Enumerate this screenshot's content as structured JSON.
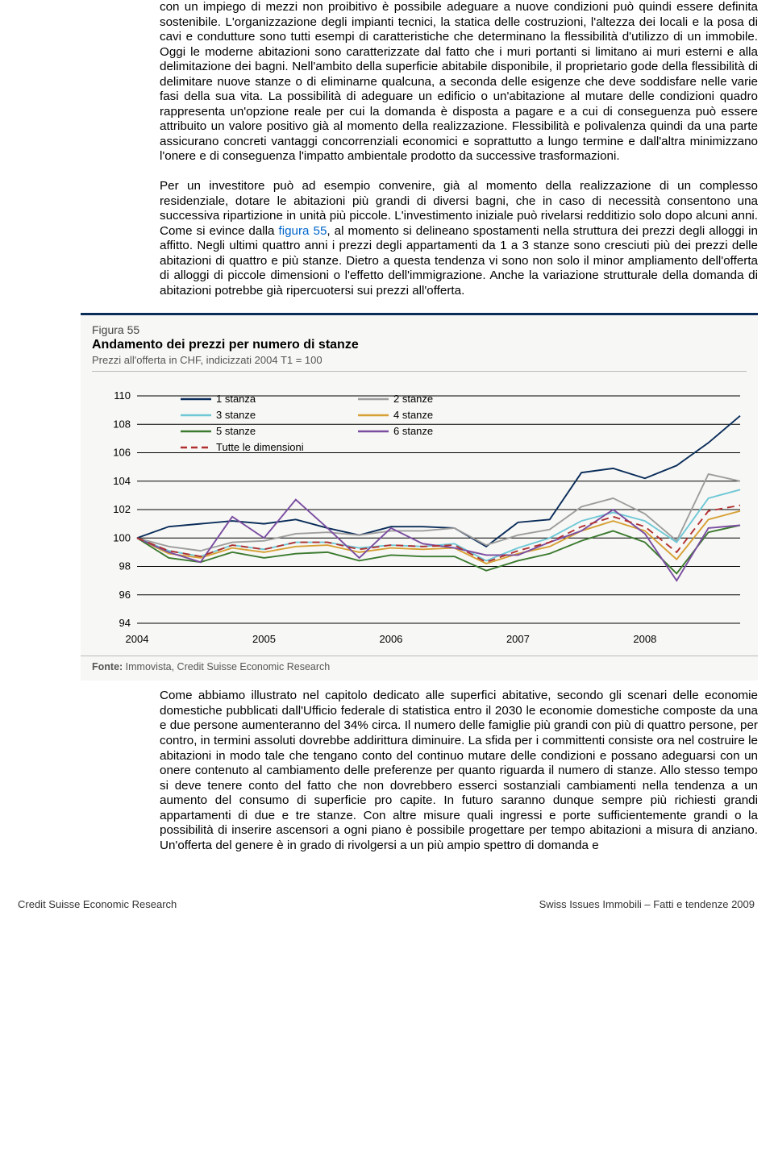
{
  "paragraphs": {
    "p1": "con un impiego di mezzi non proibitivo è possibile adeguare a nuove condizioni può quindi essere definita sostenibile. L'organizzazione degli impianti tecnici, la statica delle costruzioni, l'altezza dei locali e la posa di cavi e condutture sono tutti esempi di caratteristiche che determinano la flessibilità d'utilizzo di un immobile. Oggi le moderne abitazioni sono caratterizzate dal fatto che i muri portanti si limitano ai muri esterni e alla delimitazione dei bagni. Nell'ambito della superficie abitabile disponibile, il proprietario gode della flessibilità di delimitare nuove stanze o di eliminarne qualcuna, a seconda delle esigenze che deve soddisfare nelle varie fasi della sua vita. La possibilità di adeguare un edificio o un'abitazione al mutare delle condizioni quadro rappresenta un'opzione reale per cui la domanda è disposta a pagare e a cui di conseguenza può essere attribuito un valore positivo già al momento della realizzazione. Flessibilità e polivalenza quindi da una parte assicurano concreti vantaggi concorrenziali economici e soprattutto a lungo termine e dall'altra minimizzano l'onere e di conseguenza l'impatto ambientale prodotto da successive trasformazioni.",
    "p2_a": "Per un investitore può ad esempio convenire, già al momento della realizzazione di un complesso residenziale, dotare le abitazioni più grandi di diversi bagni, che in caso di necessità consentono una successiva ripartizione in unità più piccole. L'investimento iniziale può rivelarsi redditizio solo dopo alcuni anni. Come si evince dalla ",
    "p2_link": "figura 55",
    "p2_b": ", al momento si delineano spostamenti nella struttura dei prezzi degli alloggi in affitto. Negli ultimi quattro anni i prezzi degli appartamenti da 1 a 3 stanze sono cresciuti più dei prezzi delle abitazioni di quattro e più stanze. Dietro a questa tendenza vi sono non solo il minor ampliamento dell'offerta di alloggi di piccole dimensioni o l'effetto dell'immigrazione. Anche la variazione strutturale della domanda di abitazioni potrebbe già ripercuotersi sui prezzi all'offerta.",
    "p3": "Come abbiamo illustrato nel capitolo dedicato alle superfici abitative, secondo gli scenari delle economie domestiche pubblicati dall'Ufficio federale di statistica entro il 2030 le economie domestiche composte da una e due persone aumenteranno del 34% circa. Il numero delle famiglie più grandi con più di quattro persone, per contro, in termini assoluti dovrebbe addirittura diminuire. La sfida per i committenti consiste ora nel costruire le abitazioni in modo tale che tengano conto del continuo mutare delle condizioni e possano adeguarsi con un onere contenuto al cambiamento delle preferenze per quanto riguarda il numero di stanze. Allo stesso tempo si deve tenere conto del fatto che non dovrebbero esserci sostanziali cambiamenti nella tendenza a un aumento del consumo di superficie pro capite. In futuro saranno dunque sempre più richiesti grandi appartamenti di due e tre stanze. Con altre misure quali ingressi e porte sufficientemente grandi o la possibilità di inserire ascensori a ogni piano è possibile progettare per tempo abitazioni a misura di anziano. Un'offerta del genere è in grado di rivolgersi a un più ampio spettro di domanda e"
  },
  "figure": {
    "number": "Figura 55",
    "title": "Andamento dei prezzi per numero di stanze",
    "subtitle": "Prezzi all'offerta in CHF, indicizzati 2004 T1 = 100",
    "source_label": "Fonte:",
    "source_text": " Immovista, Credit Suisse Economic Research",
    "legend": {
      "s1": "1 stanza",
      "s2": "2 stanze",
      "s3": "3 stanze",
      "s4": "4 stanze",
      "s5": "5 stanze",
      "s6": "6 stanze",
      "all": "Tutte le dimensioni"
    },
    "y_ticks": [
      94,
      96,
      98,
      100,
      102,
      104,
      106,
      108,
      110
    ],
    "x_ticks": [
      "2004",
      "2005",
      "2006",
      "2007",
      "2008"
    ],
    "ylim": [
      94,
      110
    ],
    "x_count": 20,
    "colors": {
      "s1": "#0a2d5a",
      "s2": "#9e9e9e",
      "s3": "#6fc8d6",
      "s4": "#d6a034",
      "s5": "#3b7a2f",
      "s6": "#7a4da0",
      "all": "#b03030",
      "grid": "#000000",
      "bg": "#f7f7f5",
      "axis_text": "#000000"
    },
    "series": {
      "s1": [
        100,
        100.8,
        101,
        101.2,
        101,
        101.3,
        100.7,
        100.2,
        100.8,
        100.8,
        100.7,
        99.4,
        101.1,
        101.3,
        104.6,
        104.9,
        104.2,
        105.1,
        106.7,
        108.6
      ],
      "s2": [
        100,
        99.4,
        99.1,
        99.7,
        99.8,
        100.3,
        100.4,
        100.2,
        100.5,
        100.5,
        100.7,
        99.5,
        100.2,
        100.6,
        102.2,
        102.8,
        101.7,
        99.8,
        104.5,
        104.0
      ],
      "s3": [
        100,
        99.1,
        98.7,
        99.5,
        99.2,
        99.7,
        99.7,
        99.3,
        99.5,
        99.4,
        99.6,
        98.4,
        99.3,
        100.0,
        101.2,
        101.8,
        101.2,
        99.7,
        102.8,
        103.4
      ],
      "s4": [
        100,
        98.9,
        98.6,
        99.3,
        99.0,
        99.4,
        99.5,
        99.0,
        99.3,
        99.2,
        99.3,
        98.2,
        98.9,
        99.4,
        100.5,
        101.2,
        100.5,
        98.5,
        101.3,
        101.9
      ],
      "s5": [
        100,
        98.6,
        98.3,
        99.0,
        98.6,
        98.9,
        99.0,
        98.4,
        98.8,
        98.7,
        98.7,
        97.7,
        98.4,
        98.9,
        99.8,
        100.5,
        99.7,
        97.5,
        100.4,
        100.9
      ],
      "s6": [
        100,
        99.0,
        98.3,
        101.5,
        100.0,
        102.7,
        100.7,
        98.6,
        100.7,
        99.6,
        99.3,
        98.8,
        98.8,
        99.7,
        100.5,
        102.0,
        100.3,
        97.0,
        100.7,
        100.9
      ],
      "all": [
        100,
        99.1,
        98.7,
        99.5,
        99.2,
        99.7,
        99.7,
        99.2,
        99.5,
        99.4,
        99.5,
        98.3,
        99.1,
        99.7,
        100.8,
        101.5,
        100.8,
        99.0,
        101.9,
        102.3
      ]
    }
  },
  "footer": {
    "left": "Credit Suisse Economic Research",
    "right": "Swiss Issues Immobili – Fatti e tendenze 2009"
  }
}
